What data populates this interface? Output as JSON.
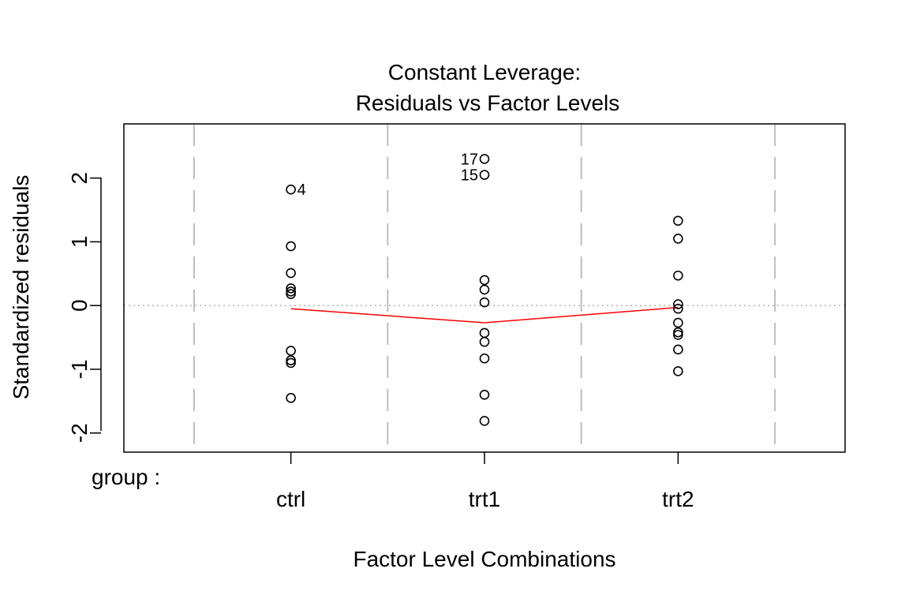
{
  "chart_data": {
    "type": "scatter",
    "title_line1": "Constant Leverage:",
    "title_line2": "Residuals vs Factor Levels",
    "xlabel": "Factor Level Combinations",
    "ylabel": "Standardized residuals",
    "factor_name": "group :",
    "categories": [
      "ctrl",
      "trt1",
      "trt2"
    ],
    "ylim": [
      -2.3,
      2.85
    ],
    "yticks": [
      -2,
      -1,
      0,
      1,
      2
    ],
    "ytick_labels": [
      "-2",
      "-1",
      "0",
      "1",
      "2"
    ],
    "points": [
      {
        "group": "ctrl",
        "values": [
          1.82,
          0.93,
          0.51,
          0.27,
          0.22,
          0.18,
          -0.71,
          -0.86,
          -0.9,
          -1.45
        ]
      },
      {
        "group": "trt1",
        "values": [
          2.3,
          2.05,
          0.4,
          0.25,
          0.05,
          -0.43,
          -0.57,
          -0.83,
          -1.4,
          -1.81
        ]
      },
      {
        "group": "trt2",
        "values": [
          1.33,
          1.05,
          0.47,
          0.02,
          -0.05,
          -0.27,
          -0.42,
          -0.46,
          -0.69,
          -1.03
        ]
      }
    ],
    "labeled_points": [
      {
        "label": "4",
        "group": "ctrl",
        "value": 1.82,
        "side": "right"
      },
      {
        "label": "17",
        "group": "trt1",
        "value": 2.3,
        "side": "left"
      },
      {
        "label": "15",
        "group": "trt1",
        "value": 2.05,
        "side": "left"
      }
    ],
    "smooth_line": {
      "color": "#ff0000",
      "values": [
        -0.05,
        -0.27,
        -0.03
      ]
    },
    "reference_line": {
      "y": 0,
      "style": "dotted",
      "color": "#b3b3b3"
    },
    "group_separators": {
      "style": "dashed",
      "color": "#bebebe"
    }
  }
}
